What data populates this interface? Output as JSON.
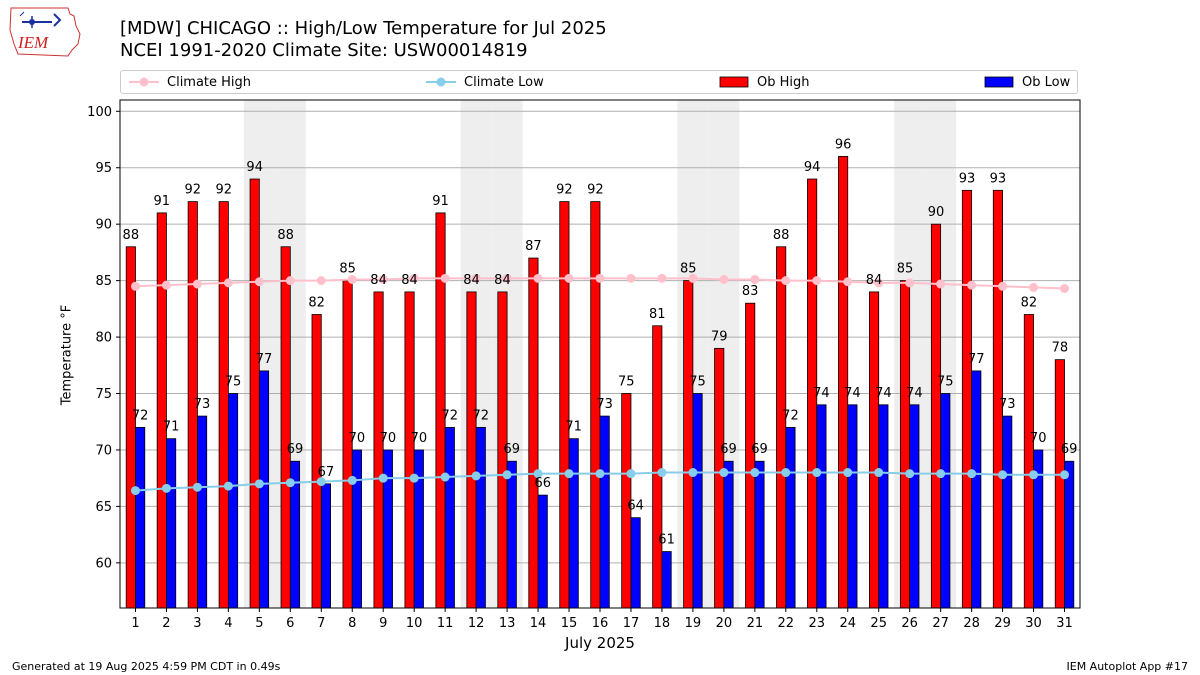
{
  "header": {
    "logo_text": "IEM",
    "title_line1": "[MDW] CHICAGO :: High/Low Temperature for Jul 2025",
    "title_line2": "NCEI 1991-2020 Climate Site: USW00014819"
  },
  "legend": {
    "climate_high": "Climate High",
    "climate_low": "Climate Low",
    "ob_high": "Ob High",
    "ob_low": "Ob Low"
  },
  "footer": {
    "left": "Generated at 19 Aug 2025 4:59 PM CDT in 0.49s",
    "right": "IEM Autoplot App #17"
  },
  "colors": {
    "ob_high": "#ff0000",
    "ob_low": "#0000ff",
    "climate_high": "#ffc0cb",
    "climate_low": "#87ceeb",
    "weekend_band": "#eeeeee",
    "grid": "#b0b0b0"
  },
  "chart_data": {
    "type": "bar",
    "xlabel": "July 2025",
    "ylabel": "Temperature °F",
    "ylim": [
      56,
      101
    ],
    "yticks": [
      60,
      65,
      70,
      75,
      80,
      85,
      90,
      95,
      100
    ],
    "grid": true,
    "legend_position": "top",
    "shaded_days": [
      5,
      6,
      12,
      13,
      19,
      20,
      26,
      27
    ],
    "x": [
      1,
      2,
      3,
      4,
      5,
      6,
      7,
      8,
      9,
      10,
      11,
      12,
      13,
      14,
      15,
      16,
      17,
      18,
      19,
      20,
      21,
      22,
      23,
      24,
      25,
      26,
      27,
      28,
      29,
      30,
      31
    ],
    "series": [
      {
        "name": "Ob High",
        "kind": "bar",
        "values": [
          88,
          91,
          92,
          92,
          94,
          88,
          82,
          85,
          84,
          84,
          91,
          84,
          84,
          87,
          92,
          92,
          75,
          81,
          85,
          79,
          83,
          88,
          94,
          96,
          84,
          85,
          90,
          93,
          93,
          82,
          78
        ]
      },
      {
        "name": "Ob Low",
        "kind": "bar",
        "values": [
          72,
          71,
          73,
          75,
          77,
          69,
          67,
          70,
          70,
          70,
          72,
          72,
          69,
          66,
          71,
          73,
          64,
          61,
          75,
          69,
          69,
          72,
          74,
          74,
          74,
          74,
          75,
          77,
          73,
          70,
          69
        ]
      },
      {
        "name": "Climate High",
        "kind": "line",
        "values": [
          84.5,
          84.6,
          84.7,
          84.8,
          84.9,
          85.0,
          85.0,
          85.1,
          85.1,
          85.2,
          85.2,
          85.2,
          85.2,
          85.2,
          85.2,
          85.2,
          85.2,
          85.2,
          85.2,
          85.1,
          85.1,
          85.0,
          85.0,
          84.9,
          84.8,
          84.8,
          84.7,
          84.6,
          84.5,
          84.4,
          84.3
        ]
      },
      {
        "name": "Climate Low",
        "kind": "line",
        "values": [
          66.4,
          66.6,
          66.7,
          66.8,
          67.0,
          67.1,
          67.2,
          67.3,
          67.5,
          67.5,
          67.6,
          67.7,
          67.8,
          67.9,
          67.9,
          67.9,
          67.9,
          68.0,
          68.0,
          68.0,
          68.0,
          68.0,
          68.0,
          68.0,
          68.0,
          67.9,
          67.9,
          67.9,
          67.8,
          67.8,
          67.8
        ]
      }
    ]
  }
}
